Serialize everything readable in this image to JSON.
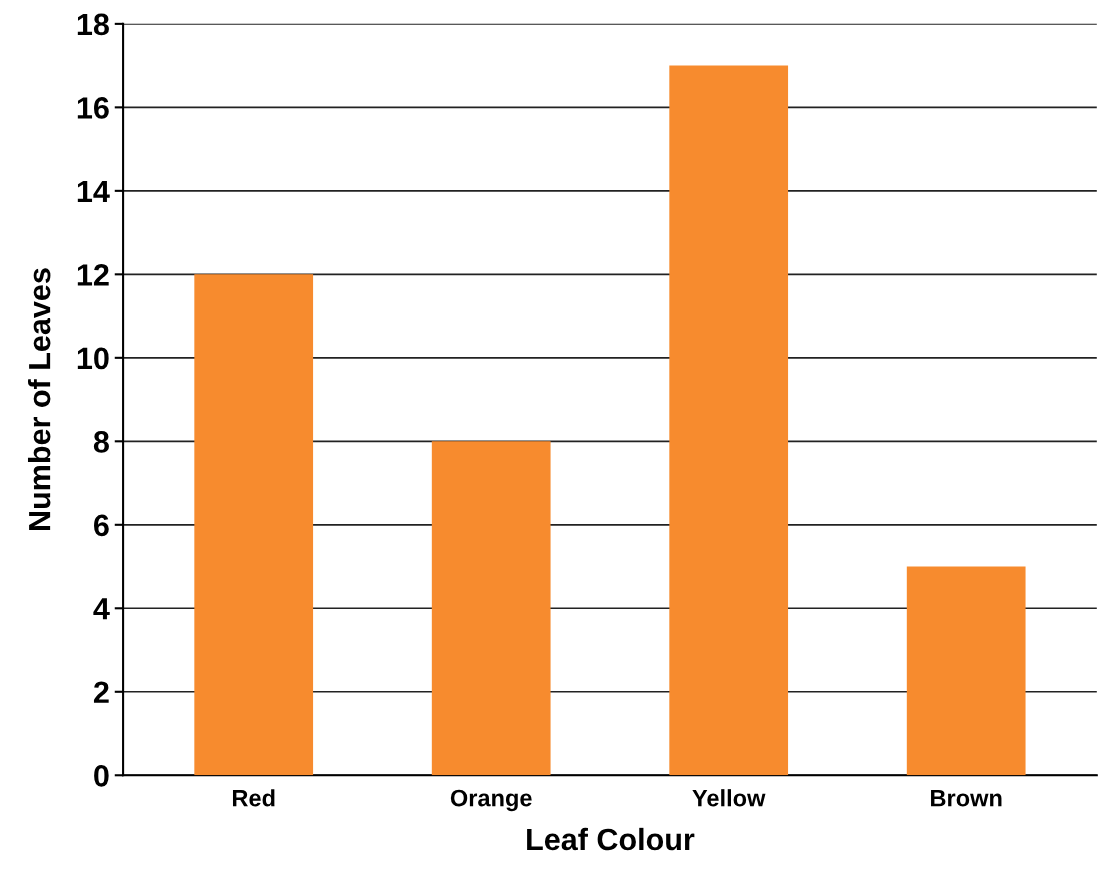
{
  "chart_data": {
    "type": "bar",
    "xlabel": "Leaf Colour",
    "ylabel": "Number of Leaves",
    "categories": [
      "Red",
      "Orange",
      "Yellow",
      "Brown"
    ],
    "values": [
      12,
      8,
      17,
      5
    ],
    "color": "#f78b2e",
    "ylim": [
      0,
      18
    ],
    "yticks": [
      0,
      2,
      4,
      6,
      8,
      10,
      12,
      14,
      16,
      18
    ],
    "grid": "y"
  }
}
